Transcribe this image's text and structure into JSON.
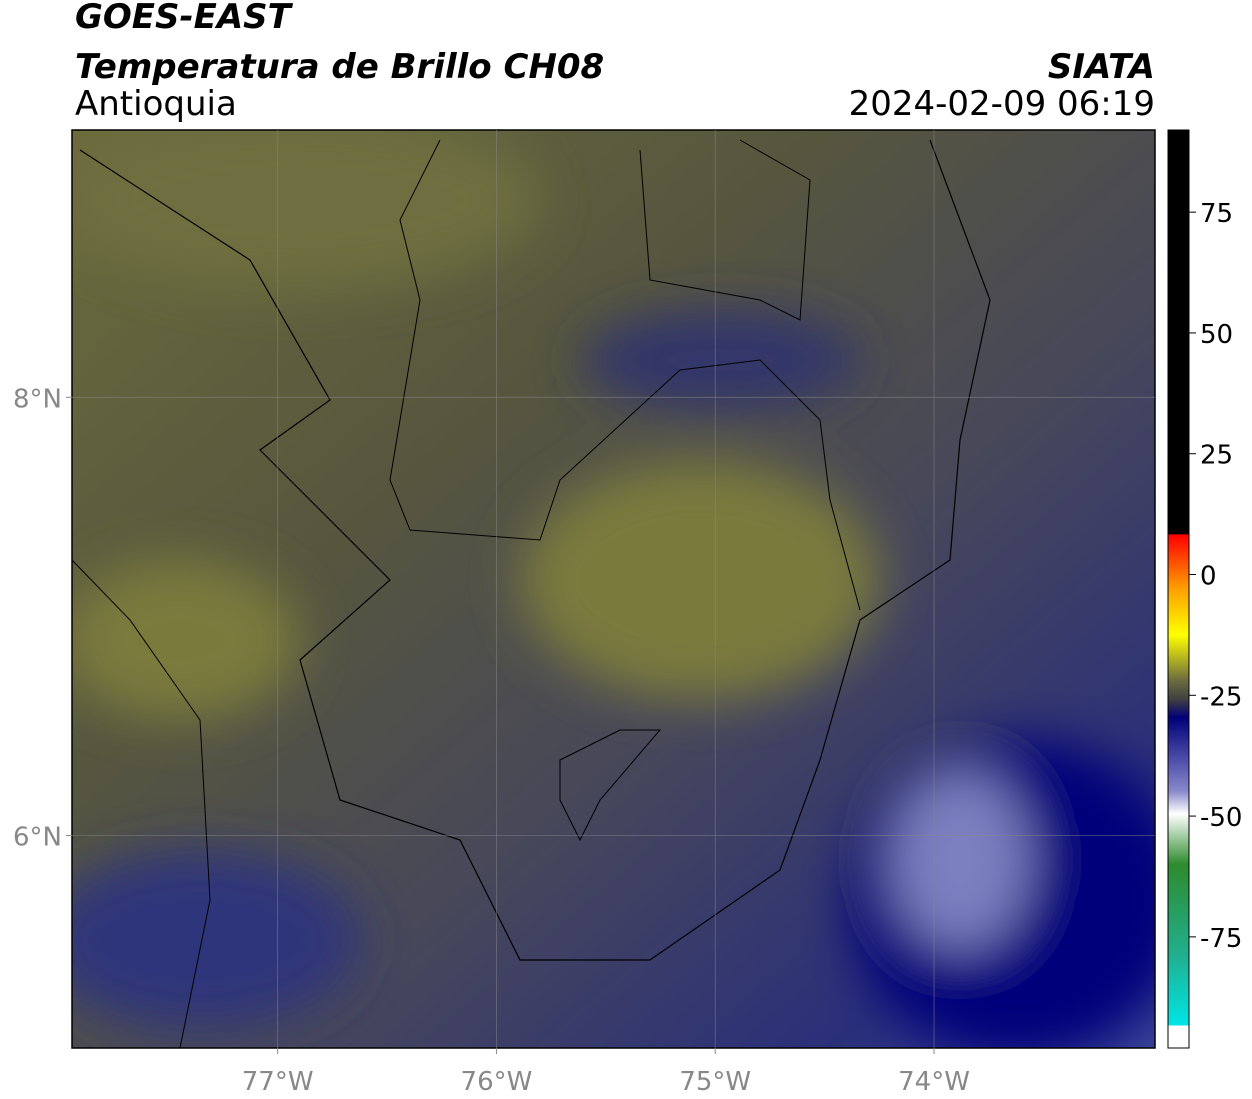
{
  "chart_data": {
    "type": "map",
    "title": "GOES-EAST",
    "subtitle": "Temperatura de Brillo CH08",
    "region": "Antioquia",
    "source": "SIATA",
    "timestamp": "2024-02-09 06:19",
    "xlim": [
      -77.94,
      -72.99
    ],
    "ylim": [
      5.03,
      9.22
    ],
    "xticks": [
      {
        "value": -77,
        "label": "77°W"
      },
      {
        "value": -76,
        "label": "76°W"
      },
      {
        "value": -75,
        "label": "75°W"
      },
      {
        "value": -74,
        "label": "74°W"
      }
    ],
    "yticks": [
      {
        "value": 6,
        "label": "6°N"
      },
      {
        "value": 8,
        "label": "8°N"
      }
    ],
    "grid": true,
    "clim": [
      -98,
      92
    ],
    "cticks": [
      75,
      50,
      25,
      0,
      -25,
      -50,
      -75
    ]
  }
}
